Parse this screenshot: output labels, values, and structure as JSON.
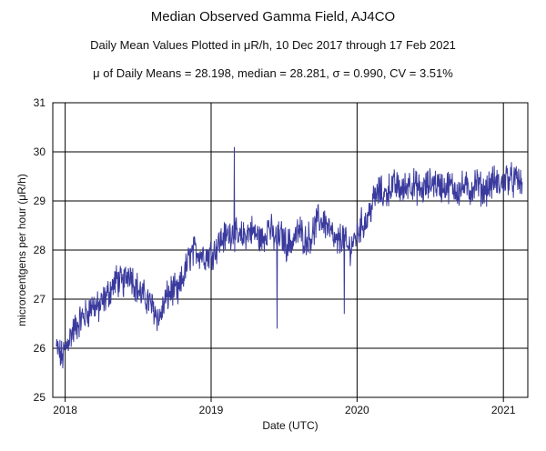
{
  "chart_data": {
    "type": "line",
    "title": "Median Observed Gamma Field, AJ4CO",
    "subtitle": "Daily Mean Values Plotted in μR/h, 10 Dec 2017 through 17 Feb 2021",
    "stats_line": "μ of Daily Means = 28.198,   median = 28.281,   σ = 0.990,   CV = 3.51%",
    "xlabel": "Date (UTC)",
    "ylabel": "microroentgens per hour (μR/h)",
    "x_tick_labels": [
      "2018",
      "2019",
      "2020",
      "2021"
    ],
    "y_tick_labels": [
      "25",
      "26",
      "27",
      "28",
      "29",
      "30",
      "31"
    ],
    "ylim": [
      25,
      31
    ],
    "xlim": [
      "2017-12-01",
      "2021-03-03"
    ],
    "grid": true,
    "line_color": "#3a3a9e",
    "series": [
      {
        "x": [
          "2017-12-10",
          "2017-12-25",
          "2018-01-10",
          "2018-01-25",
          "2018-02-10",
          "2018-02-25",
          "2018-03-10",
          "2018-03-25",
          "2018-04-10",
          "2018-04-25",
          "2018-05-10",
          "2018-05-25",
          "2018-06-10",
          "2018-06-25",
          "2018-07-10",
          "2018-07-25",
          "2018-08-10",
          "2018-08-25",
          "2018-09-10",
          "2018-09-25",
          "2018-10-10",
          "2018-10-25",
          "2018-11-10",
          "2018-11-25",
          "2018-12-10",
          "2018-12-25",
          "2019-01-10",
          "2019-01-25",
          "2019-02-10",
          "2019-02-25",
          "2019-03-10",
          "2019-03-25",
          "2019-04-10",
          "2019-04-25",
          "2019-05-10",
          "2019-05-25",
          "2019-06-10",
          "2019-06-25",
          "2019-07-10",
          "2019-07-25",
          "2019-08-10",
          "2019-08-25",
          "2019-09-10",
          "2019-09-25",
          "2019-10-10",
          "2019-10-25",
          "2019-11-10",
          "2019-11-25",
          "2019-12-10",
          "2019-12-25",
          "2020-01-10",
          "2020-01-25",
          "2020-02-10",
          "2020-02-25",
          "2020-03-10",
          "2020-03-25",
          "2020-04-10",
          "2020-04-25",
          "2020-05-10",
          "2020-05-25",
          "2020-06-10",
          "2020-06-25",
          "2020-07-10",
          "2020-07-25",
          "2020-08-10",
          "2020-08-25",
          "2020-09-10",
          "2020-09-25",
          "2020-10-10",
          "2020-10-25",
          "2020-11-10",
          "2020-11-25",
          "2020-12-10",
          "2020-12-25",
          "2021-01-10",
          "2021-01-25",
          "2021-02-10",
          "2021-02-17"
        ],
        "y": [
          26.0,
          25.8,
          26.2,
          26.4,
          26.6,
          26.7,
          26.9,
          26.8,
          27.0,
          27.2,
          27.4,
          27.3,
          27.6,
          27.3,
          27.1,
          27.0,
          26.8,
          26.6,
          27.0,
          27.2,
          27.1,
          27.5,
          27.9,
          28.0,
          27.9,
          27.9,
          28.0,
          28.2,
          28.3,
          28.4,
          28.2,
          28.3,
          28.4,
          28.3,
          28.2,
          28.5,
          28.2,
          28.3,
          28.1,
          28.2,
          28.4,
          28.2,
          28.3,
          28.6,
          28.6,
          28.4,
          28.1,
          28.3,
          28.0,
          28.2,
          28.5,
          28.6,
          29.0,
          29.2,
          29.1,
          29.3,
          29.3,
          29.2,
          29.4,
          29.3,
          29.2,
          29.3,
          29.4,
          29.3,
          29.3,
          29.3,
          29.2,
          29.3,
          29.2,
          29.4,
          29.2,
          29.3,
          29.4,
          29.3,
          29.5,
          29.4,
          29.4,
          29.3
        ]
      }
    ],
    "annotations": [
      {
        "x": "2019-02-28",
        "y": 30.1,
        "note": "spike"
      },
      {
        "x": "2019-06-15",
        "y": 26.4,
        "note": "dip"
      },
      {
        "x": "2019-11-30",
        "y": 26.7,
        "note": "dip"
      }
    ]
  }
}
